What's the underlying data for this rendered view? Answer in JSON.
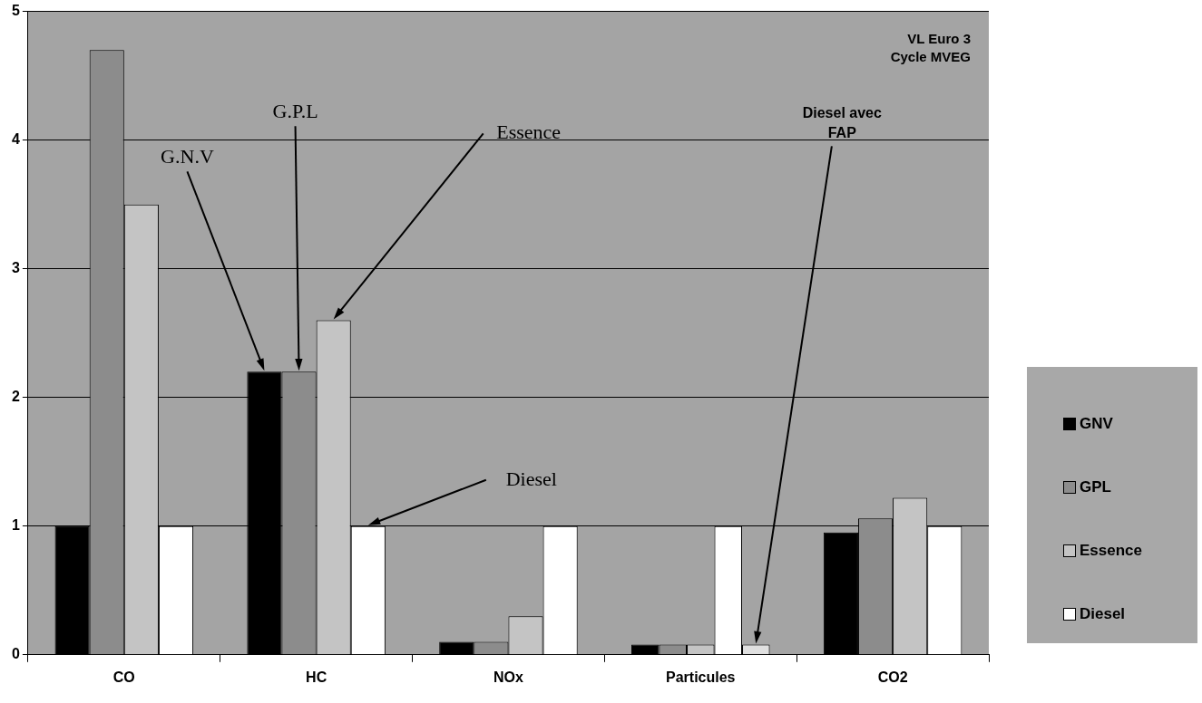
{
  "chart_data": {
    "type": "bar",
    "categories": [
      "CO",
      "HC",
      "NOx",
      "Particules",
      "CO2"
    ],
    "series": [
      {
        "name": "GNV",
        "color": "#000000",
        "values": [
          1,
          2.2,
          0.1,
          0.08,
          0.95
        ]
      },
      {
        "name": "GPL",
        "color": "#8c8c8c",
        "values": [
          4.7,
          2.2,
          0.1,
          0.08,
          1.06
        ]
      },
      {
        "name": "Essence",
        "color": "#c4c4c4",
        "values": [
          3.5,
          2.6,
          0.3,
          0.08,
          1.22
        ]
      },
      {
        "name": "Diesel",
        "color": "#ffffff",
        "values": [
          1,
          1,
          1,
          1,
          1
        ]
      },
      {
        "color": "#e0e0e0",
        "values": [
          null,
          null,
          null,
          0.08,
          null
        ]
      }
    ],
    "ylim": [
      0,
      5
    ],
    "yticks": [
      0,
      1,
      2,
      3,
      4,
      5
    ],
    "grid": "y",
    "legend": "bottom right",
    "annotations": [
      "VL Euro 3\nCycle MVEG",
      "G.N.V",
      "G.P.L",
      "Essence",
      "Diesel",
      "Diesel avec\nFAP"
    ]
  }
}
